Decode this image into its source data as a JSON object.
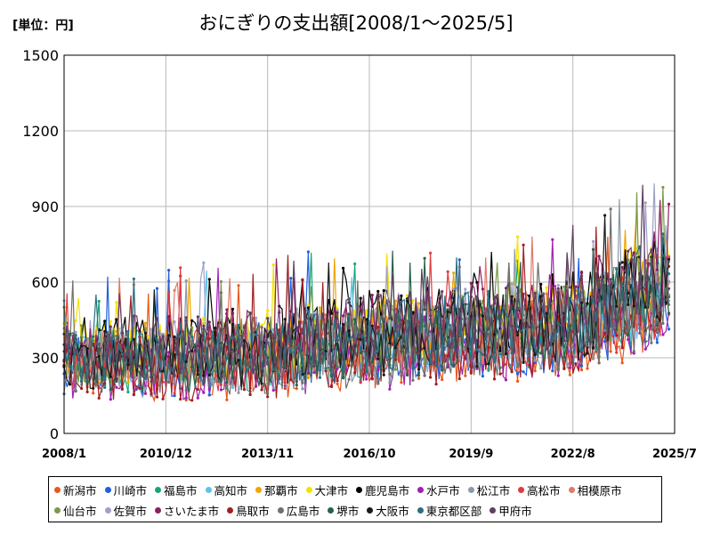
{
  "unit_label": "[単位：円]",
  "chart_data": {
    "type": "line",
    "title": "おにぎりの支出額[2008/1～2025/5]",
    "xlabel": "",
    "ylabel": "",
    "ylim": [
      0,
      1500
    ],
    "yticks": [
      0,
      300,
      600,
      900,
      1200,
      1500
    ],
    "xticks": [
      "2008/1",
      "2010/12",
      "2013/11",
      "2016/10",
      "2019/9",
      "2022/8",
      "2025/7"
    ],
    "x_start": "2008/1",
    "x_end": "2025/7",
    "grid": true,
    "legend_position": "bottom",
    "trend_summary": [
      {
        "period": "2008/1",
        "low": 180,
        "typical": 300,
        "high": 500
      },
      {
        "period": "2010/12",
        "low": 180,
        "typical": 300,
        "high": 520
      },
      {
        "period": "2013/11",
        "low": 190,
        "typical": 320,
        "high": 560
      },
      {
        "period": "2016/10",
        "low": 210,
        "typical": 370,
        "high": 600
      },
      {
        "period": "2019/9",
        "low": 240,
        "typical": 400,
        "high": 620
      },
      {
        "period": "2022/8",
        "low": 280,
        "typical": 430,
        "high": 680
      },
      {
        "period": "2025/5",
        "low": 420,
        "typical": 600,
        "high": 900
      }
    ],
    "series": [
      {
        "name": "新潟市",
        "color": "#e8581c"
      },
      {
        "name": "川崎市",
        "color": "#1f5fe0"
      },
      {
        "name": "福島市",
        "color": "#1aa37a"
      },
      {
        "name": "高知市",
        "color": "#5bc3e8"
      },
      {
        "name": "那覇市",
        "color": "#f0a500"
      },
      {
        "name": "大津市",
        "color": "#f5e100"
      },
      {
        "name": "鹿児島市",
        "color": "#000000"
      },
      {
        "name": "水戸市",
        "color": "#a020b0"
      },
      {
        "name": "松江市",
        "color": "#8a9aa8"
      },
      {
        "name": "高松市",
        "color": "#e03c3c"
      },
      {
        "name": "相模原市",
        "color": "#e07a6a"
      },
      {
        "name": "仙台市",
        "color": "#7a9a4a"
      },
      {
        "name": "佐賀市",
        "color": "#a0a0c8"
      },
      {
        "name": "さいたま市",
        "color": "#8a2060"
      },
      {
        "name": "鳥取市",
        "color": "#a02020"
      },
      {
        "name": "広島市",
        "color": "#707070"
      },
      {
        "name": "堺市",
        "color": "#2a6050"
      },
      {
        "name": "大阪市",
        "color": "#1a1a1a"
      },
      {
        "name": "東京都区部",
        "color": "#2a7080"
      },
      {
        "name": "甲府市",
        "color": "#604060"
      }
    ]
  }
}
